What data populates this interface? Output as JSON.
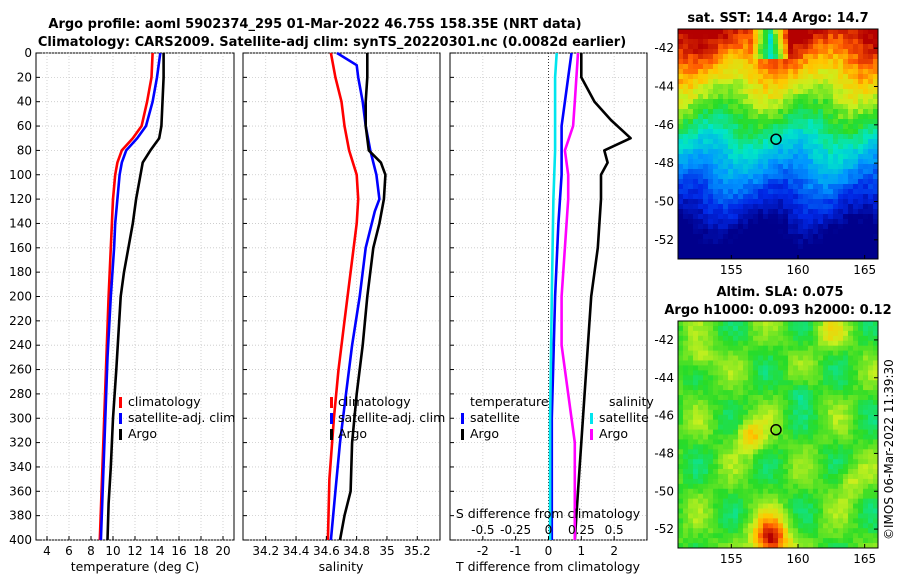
{
  "title": {
    "line1": "Argo profile: aoml 5902374_295 01-Mar-2022 46.75S 158.35E (NRT data)",
    "line2": "Climatology: CARS2009. Satellite-adj clim: synTS_20220301.nc (0.0082d earlier)"
  },
  "colors": {
    "climatology": "#ff0000",
    "satellite": "#0000ff",
    "argo": "#000000",
    "satellite_s": "#00e5ee",
    "argo_s": "#ff00ff"
  },
  "chart_data": [
    {
      "type": "line",
      "id": "temperature",
      "xlabel": "temperature (deg C)",
      "xlim": [
        3,
        21
      ],
      "ylim": [
        0,
        400
      ],
      "yticks": [
        0,
        20,
        40,
        60,
        80,
        100,
        120,
        140,
        160,
        180,
        200,
        220,
        240,
        260,
        280,
        300,
        320,
        340,
        360,
        380,
        400
      ],
      "xticks": [
        "4",
        "6",
        "8",
        "10",
        "12",
        "14",
        "16",
        "18",
        "20"
      ],
      "xtick_values": [
        4,
        6,
        8,
        10,
        12,
        14,
        16,
        18,
        20
      ],
      "legend": [
        "climatology",
        "satellite-adj. clim",
        "Argo"
      ],
      "series": [
        {
          "name": "climatology",
          "color": "#ff0000",
          "depth": [
            0,
            20,
            40,
            60,
            70,
            80,
            90,
            100,
            120,
            140,
            160,
            200,
            250,
            300,
            350,
            400
          ],
          "values": [
            13.6,
            13.5,
            13.1,
            12.6,
            11.8,
            10.8,
            10.4,
            10.2,
            10.0,
            9.9,
            9.8,
            9.6,
            9.4,
            9.2,
            9.0,
            8.8
          ]
        },
        {
          "name": "satellite-adj. clim",
          "color": "#0000ff",
          "depth": [
            0,
            20,
            40,
            60,
            70,
            80,
            90,
            100,
            120,
            140,
            160,
            200,
            250,
            300,
            350,
            400
          ],
          "values": [
            14.3,
            14.0,
            13.6,
            13.0,
            12.2,
            11.2,
            10.8,
            10.6,
            10.4,
            10.2,
            10.1,
            9.8,
            9.5,
            9.3,
            9.1,
            8.9
          ]
        },
        {
          "name": "Argo",
          "color": "#000000",
          "depth": [
            0,
            20,
            40,
            60,
            70,
            80,
            90,
            100,
            120,
            140,
            160,
            180,
            200,
            230,
            260,
            300,
            340,
            370,
            400
          ],
          "values": [
            14.6,
            14.6,
            14.5,
            14.4,
            14.2,
            13.4,
            12.7,
            12.5,
            12.1,
            11.8,
            11.4,
            11.0,
            10.7,
            10.5,
            10.3,
            10.0,
            9.8,
            9.6,
            9.5
          ]
        }
      ]
    },
    {
      "type": "line",
      "id": "salinity",
      "xlabel": "salinity",
      "xlim": [
        34.05,
        35.35
      ],
      "ylim": [
        0,
        400
      ],
      "xticks": [
        "34.2",
        "34.4",
        "34.6",
        "34.8",
        "35",
        "35.2"
      ],
      "xtick_values": [
        34.2,
        34.4,
        34.6,
        34.8,
        35.0,
        35.2
      ],
      "legend": [
        "climatology",
        "satellite-adj. clim",
        "Argo"
      ],
      "series": [
        {
          "name": "climatology",
          "color": "#ff0000",
          "depth": [
            0,
            20,
            40,
            60,
            80,
            100,
            120,
            140,
            180,
            220,
            260,
            300,
            350,
            400
          ],
          "values": [
            34.63,
            34.66,
            34.7,
            34.72,
            34.75,
            34.8,
            34.81,
            34.8,
            34.76,
            34.72,
            34.68,
            34.65,
            34.62,
            34.61
          ]
        },
        {
          "name": "satellite-adj. clim",
          "color": "#0000ff",
          "depth": [
            0,
            10,
            20,
            40,
            60,
            80,
            100,
            120,
            130,
            160,
            200,
            240,
            280,
            320,
            360,
            400
          ],
          "values": [
            34.67,
            34.8,
            34.81,
            34.84,
            34.86,
            34.89,
            34.93,
            34.95,
            34.92,
            34.86,
            34.82,
            34.77,
            34.73,
            34.69,
            34.66,
            34.63
          ]
        },
        {
          "name": "Argo",
          "color": "#000000",
          "depth": [
            0,
            20,
            40,
            60,
            80,
            90,
            100,
            120,
            140,
            160,
            200,
            240,
            280,
            320,
            360,
            380,
            400
          ],
          "values": [
            34.87,
            34.87,
            34.86,
            34.86,
            34.88,
            34.96,
            34.99,
            34.98,
            34.95,
            34.91,
            34.87,
            34.84,
            34.8,
            34.77,
            34.76,
            34.72,
            34.69
          ]
        }
      ]
    },
    {
      "type": "line",
      "id": "difference",
      "xlabel": "T difference from climatology",
      "xlabel_top": "S difference from climatology",
      "xlim": [
        -3,
        3
      ],
      "ylim": [
        0,
        400
      ],
      "xticks": [
        "-2",
        "-1",
        "0",
        "1",
        "2"
      ],
      "xtick_values": [
        -2,
        -1,
        0,
        1,
        2
      ],
      "s_ticks": [
        "-0.5",
        "-0.25",
        "0",
        "0.25",
        "0.5"
      ],
      "s_tick_values": [
        -2,
        -1,
        0,
        1,
        2
      ],
      "legend_left": {
        "header": "temperature",
        "items": [
          "satellite",
          "Argo"
        ]
      },
      "legend_right": {
        "header": "salinity",
        "items": [
          "satellite",
          "Argo"
        ]
      },
      "series": [
        {
          "name": "temperature satellite",
          "color": "#0000ff",
          "depth": [
            0,
            20,
            40,
            60,
            70,
            80,
            100,
            140,
            200,
            300,
            400
          ],
          "values": [
            0.7,
            0.6,
            0.5,
            0.4,
            0.4,
            0.4,
            0.4,
            0.3,
            0.2,
            0.1,
            0.1
          ]
        },
        {
          "name": "temperature Argo",
          "color": "#000000",
          "depth": [
            0,
            20,
            40,
            55,
            65,
            70,
            80,
            90,
            100,
            120,
            160,
            200,
            240,
            280,
            320,
            360,
            400
          ],
          "values": [
            1.0,
            1.0,
            1.4,
            1.9,
            2.3,
            2.5,
            1.7,
            1.8,
            1.6,
            1.6,
            1.5,
            1.3,
            1.2,
            1.1,
            1.0,
            0.9,
            0.8
          ]
        },
        {
          "name": "salinity satellite",
          "color": "#00e5ee",
          "depth": [
            0,
            20,
            40,
            80,
            120,
            200,
            300,
            400
          ],
          "values": [
            0.25,
            0.2,
            0.2,
            0.2,
            0.15,
            0.1,
            0.05,
            0.05
          ]
        },
        {
          "name": "salinity Argo",
          "color": "#ff00ff",
          "depth": [
            0,
            20,
            40,
            60,
            80,
            100,
            120,
            160,
            200,
            240,
            280,
            320,
            360,
            400
          ],
          "values": [
            0.9,
            0.85,
            0.8,
            0.75,
            0.5,
            0.6,
            0.6,
            0.5,
            0.4,
            0.4,
            0.6,
            0.8,
            0.8,
            0.8
          ]
        }
      ]
    }
  ],
  "maps": {
    "sst": {
      "title": "sat. SST: 14.4 Argo: 14.7",
      "yticks": [
        "-42",
        "-44",
        "-46",
        "-48",
        "-50",
        "-52"
      ],
      "ytick_values": [
        -42,
        -44,
        -46,
        -48,
        -50,
        -52
      ],
      "xticks": [
        "155",
        "160",
        "165"
      ],
      "xtick_values": [
        155,
        160,
        165
      ]
    },
    "sla": {
      "title1": "Altim. SLA: 0.075",
      "title2": "Argo h1000: 0.093 h2000: 0.12",
      "yticks": [
        "-42",
        "-44",
        "-46",
        "-48",
        "-50",
        "-52"
      ],
      "ytick_values": [
        -42,
        -44,
        -46,
        -48,
        -50,
        -52
      ],
      "xticks": [
        "155",
        "160",
        "165"
      ],
      "xtick_values": [
        155,
        160,
        165
      ],
      "footer": "©IMOS 06-Mar-2022 11:39:30"
    },
    "argo_position": {
      "lon": 158.35,
      "lat": -46.75
    }
  }
}
